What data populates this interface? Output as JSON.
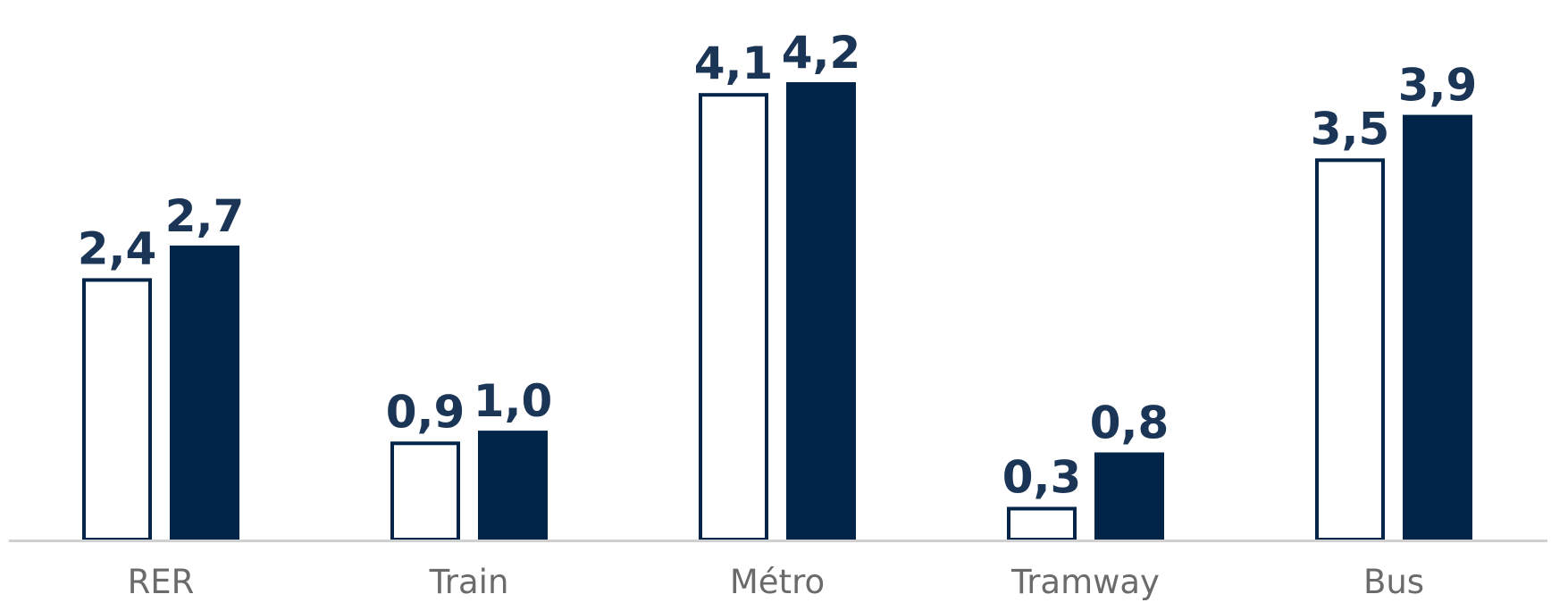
{
  "colors": {
    "series_fill": [
      "#ffffff",
      "#002548"
    ],
    "series_stroke": [
      "#002548",
      "#002548"
    ],
    "value_label": "#1b3556",
    "category_label": "#6b6b6b",
    "axis_line": "#d0d0d0",
    "background": "#ffffff"
  },
  "chart_data": {
    "type": "bar",
    "categories": [
      "RER",
      "Train",
      "Métro",
      "Tramway",
      "Bus"
    ],
    "series": [
      {
        "values": [
          2.4,
          0.9,
          4.1,
          0.3,
          3.5
        ],
        "labels": [
          "2,4",
          "0,9",
          "4,1",
          "0,3",
          "3,5"
        ]
      },
      {
        "values": [
          2.7,
          1.0,
          4.2,
          0.8,
          3.9
        ],
        "labels": [
          "2,7",
          "1,0",
          "4,2",
          "0,8",
          "3,9"
        ]
      }
    ],
    "title": "",
    "xlabel": "",
    "ylabel": "",
    "ylim": [
      0,
      4.2
    ],
    "grid": false,
    "legend": "none",
    "y_axis_visible": false,
    "data_labels": true
  }
}
